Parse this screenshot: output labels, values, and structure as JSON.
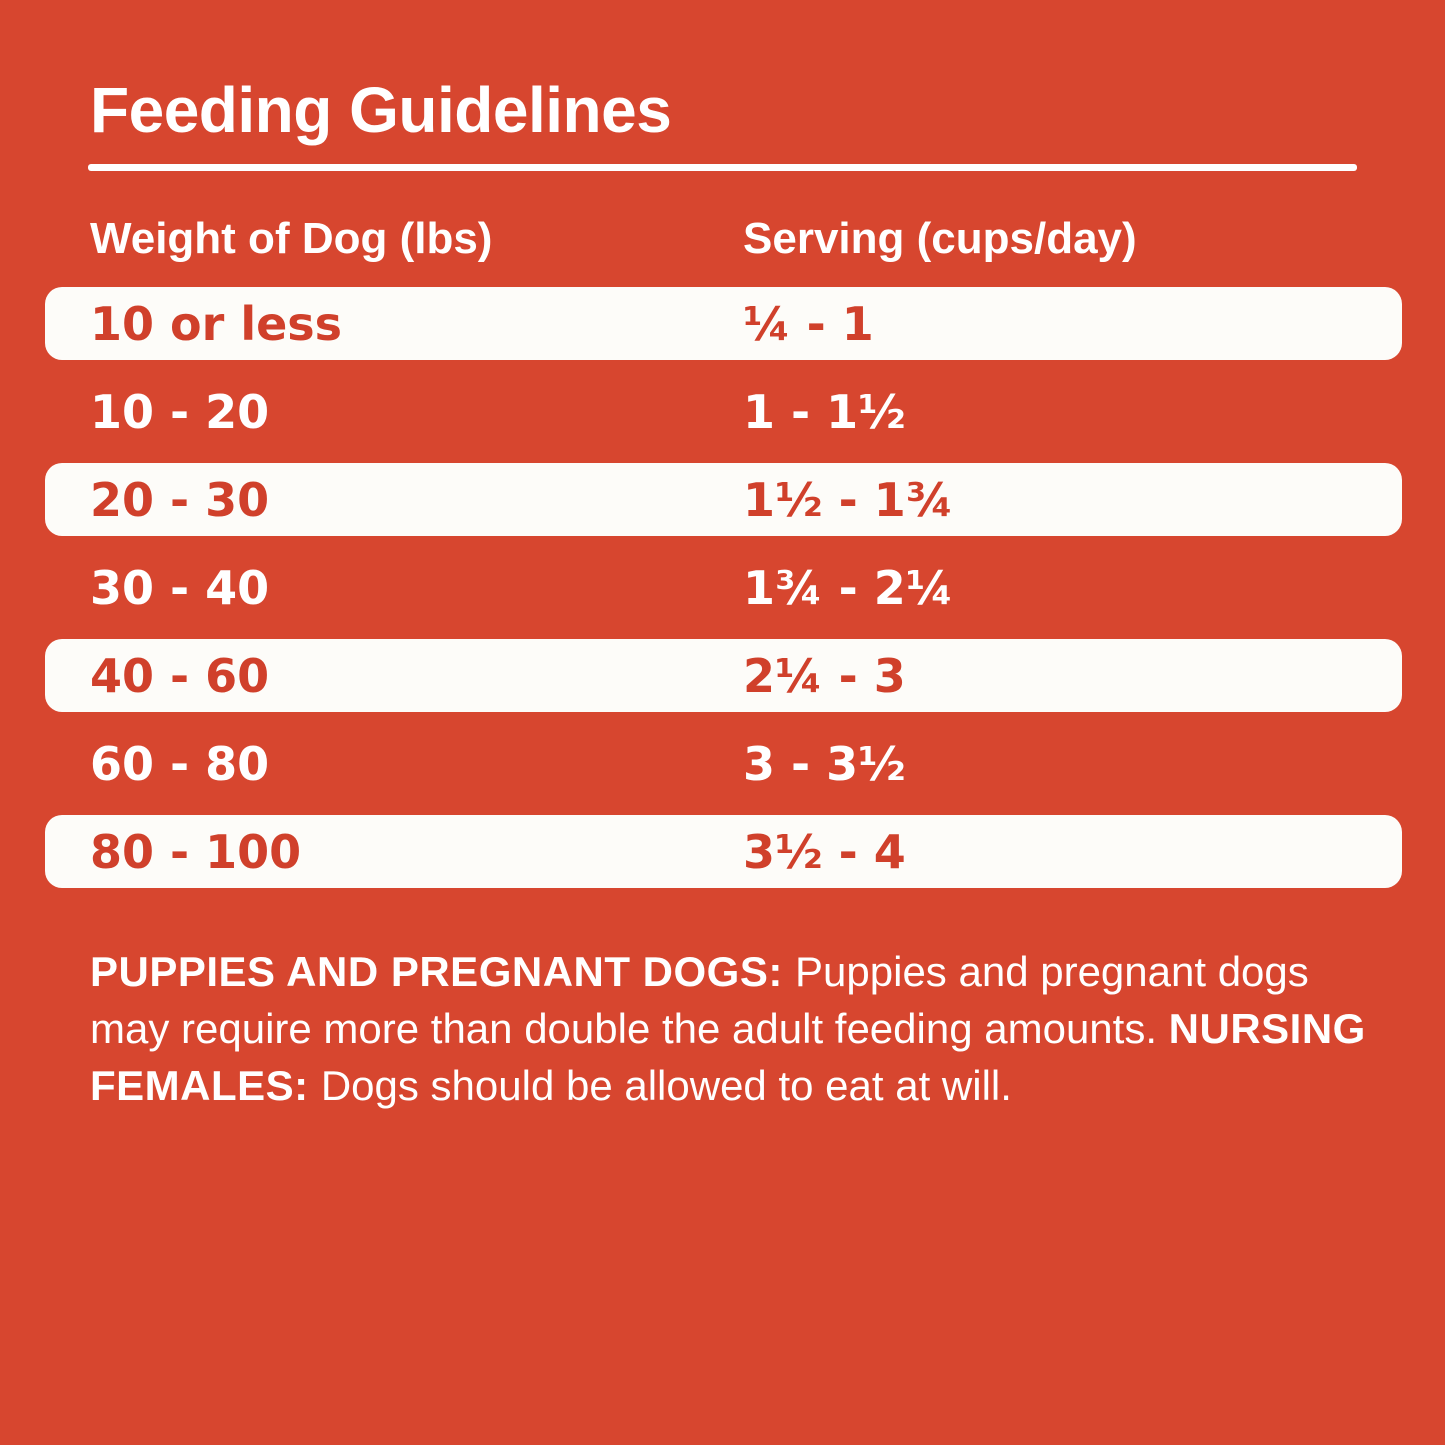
{
  "title": "Feeding Guidelines",
  "table": {
    "columns": [
      "Weight of Dog (lbs)",
      "Serving (cups/day)"
    ],
    "rows": [
      {
        "weight": "10 or less",
        "serving": "¼ - 1",
        "highlight": true
      },
      {
        "weight": "10 - 20",
        "serving": "1 - 1½",
        "highlight": false
      },
      {
        "weight": "20 - 30",
        "serving": "1½ - 1¾",
        "highlight": true
      },
      {
        "weight": "30 - 40",
        "serving": "1¾ - 2¼",
        "highlight": false
      },
      {
        "weight": "40 - 60",
        "serving": "2¼ - 3",
        "highlight": true
      },
      {
        "weight": "60 - 80",
        "serving": "3 - 3½",
        "highlight": false
      },
      {
        "weight": "80 - 100",
        "serving": "3½ - 4",
        "highlight": true
      }
    ]
  },
  "notes": {
    "segments": [
      {
        "text": "PUPPIES AND PREGNANT DOGS: ",
        "bold": true
      },
      {
        "text": "Puppies and pregnant dogs may require more than double the adult feeding amounts. ",
        "bold": false
      },
      {
        "text": "NURSING FEMALES: ",
        "bold": true
      },
      {
        "text": "Dogs should be allowed to eat at will.",
        "bold": false
      }
    ]
  },
  "colors": {
    "background": "#d7462f",
    "pill": "#fdfcf9",
    "pill_text": "#d0402b",
    "text": "#ffffff"
  }
}
